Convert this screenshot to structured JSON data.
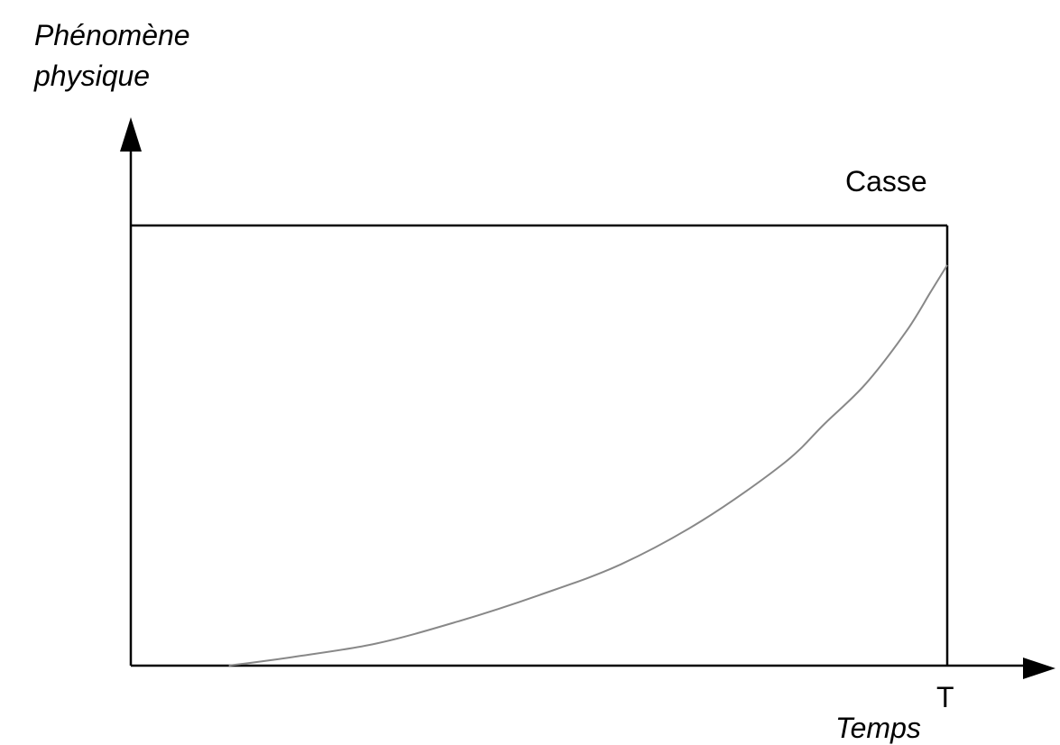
{
  "chart_data": {
    "type": "line",
    "ylabel_line1": "Phénomène",
    "ylabel_line2": "physique",
    "xlabel": "Temps",
    "x_tick_label": "T",
    "threshold_label": "Casse",
    "x_range": [
      0,
      1
    ],
    "y_range": [
      0,
      1.1
    ],
    "threshold_level": 1.0,
    "x_tick_value": 1.0,
    "grid": false,
    "series": [
      {
        "x": [
          0.12,
          0.2,
          0.3,
          0.4,
          0.5,
          0.6,
          0.7,
          0.8,
          0.85,
          0.9,
          0.95,
          0.98,
          1.0
        ],
        "y": [
          0.0,
          0.02,
          0.05,
          0.1,
          0.16,
          0.23,
          0.33,
          0.46,
          0.55,
          0.64,
          0.76,
          0.85,
          0.91
        ]
      }
    ]
  },
  "colors": {
    "axis": "#000000",
    "curve": "#888888"
  }
}
